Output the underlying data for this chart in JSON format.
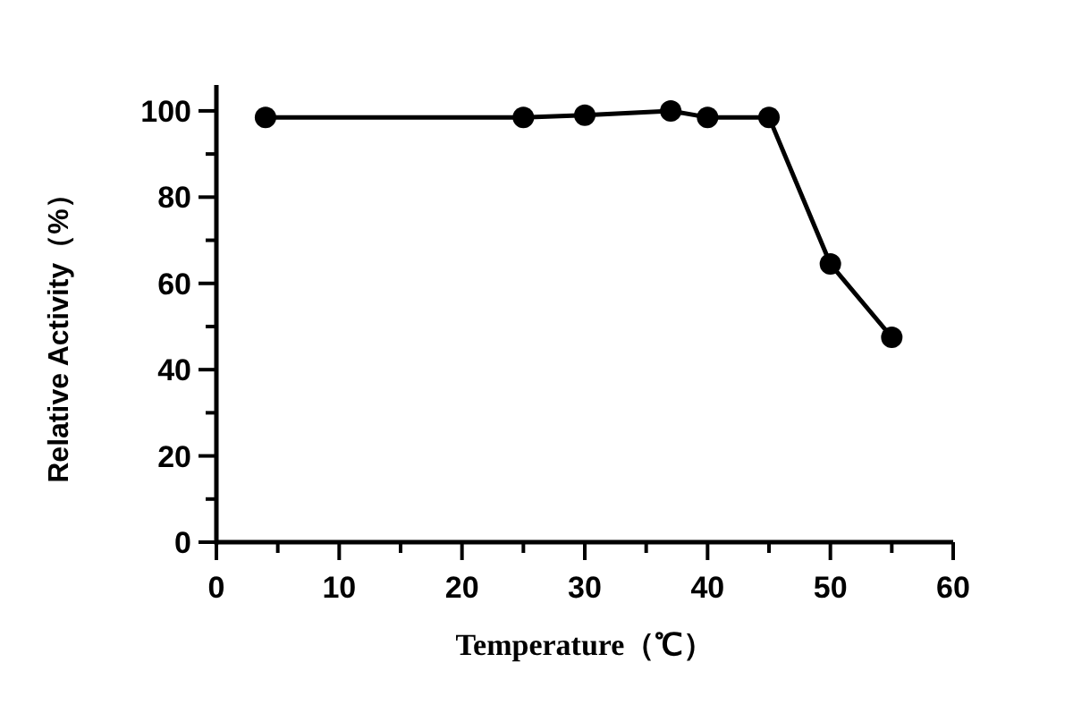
{
  "chart_data": {
    "type": "line",
    "xlabel": "Temperature（℃）",
    "ylabel": "Relative Activity（%）",
    "x": [
      4,
      25,
      30,
      37,
      40,
      45,
      50,
      55
    ],
    "series": [
      {
        "color": "#000000",
        "values": [
          98.5,
          98.5,
          99,
          100,
          98.5,
          98.5,
          64.5,
          47.5
        ]
      }
    ],
    "xlim": [
      0,
      60
    ],
    "xticks": [
      0,
      {
        "value": 5,
        "label": null
      },
      10,
      {
        "value": 15,
        "label": null
      },
      20,
      {
        "value": 25,
        "label": null
      },
      30,
      {
        "value": 35,
        "label": null
      },
      40,
      {
        "value": 45,
        "label": null
      },
      50,
      {
        "value": 55,
        "label": null
      },
      60
    ],
    "ylim": [
      0,
      106
    ],
    "yticks": [
      0,
      {
        "value": 10,
        "label": null
      },
      20,
      {
        "value": 30,
        "label": null
      },
      40,
      {
        "value": 50,
        "label": null
      },
      60,
      {
        "value": 70,
        "label": null
      },
      80,
      {
        "value": 90,
        "label": null
      },
      100
    ],
    "marker": "circle",
    "line_style": "solid",
    "grid": false
  }
}
